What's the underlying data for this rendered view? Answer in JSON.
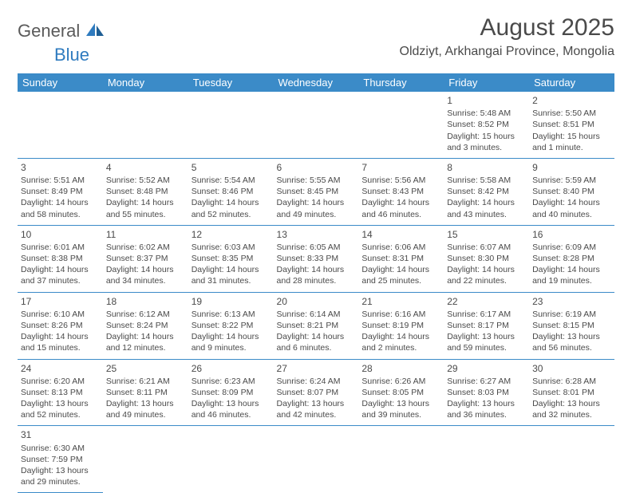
{
  "logo": {
    "text1": "General",
    "text2": "Blue"
  },
  "title": "August 2025",
  "location": "Oldziyt, Arkhangai Province, Mongolia",
  "colors": {
    "header_bg": "#3b8bc8",
    "header_text": "#ffffff",
    "body_text": "#4a4a4a",
    "border": "#3b8bc8",
    "logo_blue": "#2f7bbf"
  },
  "day_headers": [
    "Sunday",
    "Monday",
    "Tuesday",
    "Wednesday",
    "Thursday",
    "Friday",
    "Saturday"
  ],
  "weeks": [
    [
      null,
      null,
      null,
      null,
      null,
      {
        "n": "1",
        "sr": "5:48 AM",
        "ss": "8:52 PM",
        "dl": "15 hours and 3 minutes."
      },
      {
        "n": "2",
        "sr": "5:50 AM",
        "ss": "8:51 PM",
        "dl": "15 hours and 1 minute."
      }
    ],
    [
      {
        "n": "3",
        "sr": "5:51 AM",
        "ss": "8:49 PM",
        "dl": "14 hours and 58 minutes."
      },
      {
        "n": "4",
        "sr": "5:52 AM",
        "ss": "8:48 PM",
        "dl": "14 hours and 55 minutes."
      },
      {
        "n": "5",
        "sr": "5:54 AM",
        "ss": "8:46 PM",
        "dl": "14 hours and 52 minutes."
      },
      {
        "n": "6",
        "sr": "5:55 AM",
        "ss": "8:45 PM",
        "dl": "14 hours and 49 minutes."
      },
      {
        "n": "7",
        "sr": "5:56 AM",
        "ss": "8:43 PM",
        "dl": "14 hours and 46 minutes."
      },
      {
        "n": "8",
        "sr": "5:58 AM",
        "ss": "8:42 PM",
        "dl": "14 hours and 43 minutes."
      },
      {
        "n": "9",
        "sr": "5:59 AM",
        "ss": "8:40 PM",
        "dl": "14 hours and 40 minutes."
      }
    ],
    [
      {
        "n": "10",
        "sr": "6:01 AM",
        "ss": "8:38 PM",
        "dl": "14 hours and 37 minutes."
      },
      {
        "n": "11",
        "sr": "6:02 AM",
        "ss": "8:37 PM",
        "dl": "14 hours and 34 minutes."
      },
      {
        "n": "12",
        "sr": "6:03 AM",
        "ss": "8:35 PM",
        "dl": "14 hours and 31 minutes."
      },
      {
        "n": "13",
        "sr": "6:05 AM",
        "ss": "8:33 PM",
        "dl": "14 hours and 28 minutes."
      },
      {
        "n": "14",
        "sr": "6:06 AM",
        "ss": "8:31 PM",
        "dl": "14 hours and 25 minutes."
      },
      {
        "n": "15",
        "sr": "6:07 AM",
        "ss": "8:30 PM",
        "dl": "14 hours and 22 minutes."
      },
      {
        "n": "16",
        "sr": "6:09 AM",
        "ss": "8:28 PM",
        "dl": "14 hours and 19 minutes."
      }
    ],
    [
      {
        "n": "17",
        "sr": "6:10 AM",
        "ss": "8:26 PM",
        "dl": "14 hours and 15 minutes."
      },
      {
        "n": "18",
        "sr": "6:12 AM",
        "ss": "8:24 PM",
        "dl": "14 hours and 12 minutes."
      },
      {
        "n": "19",
        "sr": "6:13 AM",
        "ss": "8:22 PM",
        "dl": "14 hours and 9 minutes."
      },
      {
        "n": "20",
        "sr": "6:14 AM",
        "ss": "8:21 PM",
        "dl": "14 hours and 6 minutes."
      },
      {
        "n": "21",
        "sr": "6:16 AM",
        "ss": "8:19 PM",
        "dl": "14 hours and 2 minutes."
      },
      {
        "n": "22",
        "sr": "6:17 AM",
        "ss": "8:17 PM",
        "dl": "13 hours and 59 minutes."
      },
      {
        "n": "23",
        "sr": "6:19 AM",
        "ss": "8:15 PM",
        "dl": "13 hours and 56 minutes."
      }
    ],
    [
      {
        "n": "24",
        "sr": "6:20 AM",
        "ss": "8:13 PM",
        "dl": "13 hours and 52 minutes."
      },
      {
        "n": "25",
        "sr": "6:21 AM",
        "ss": "8:11 PM",
        "dl": "13 hours and 49 minutes."
      },
      {
        "n": "26",
        "sr": "6:23 AM",
        "ss": "8:09 PM",
        "dl": "13 hours and 46 minutes."
      },
      {
        "n": "27",
        "sr": "6:24 AM",
        "ss": "8:07 PM",
        "dl": "13 hours and 42 minutes."
      },
      {
        "n": "28",
        "sr": "6:26 AM",
        "ss": "8:05 PM",
        "dl": "13 hours and 39 minutes."
      },
      {
        "n": "29",
        "sr": "6:27 AM",
        "ss": "8:03 PM",
        "dl": "13 hours and 36 minutes."
      },
      {
        "n": "30",
        "sr": "6:28 AM",
        "ss": "8:01 PM",
        "dl": "13 hours and 32 minutes."
      }
    ],
    [
      {
        "n": "31",
        "sr": "6:30 AM",
        "ss": "7:59 PM",
        "dl": "13 hours and 29 minutes."
      },
      null,
      null,
      null,
      null,
      null,
      null
    ]
  ],
  "labels": {
    "sunrise": "Sunrise: ",
    "sunset": "Sunset: ",
    "daylight": "Daylight: "
  }
}
